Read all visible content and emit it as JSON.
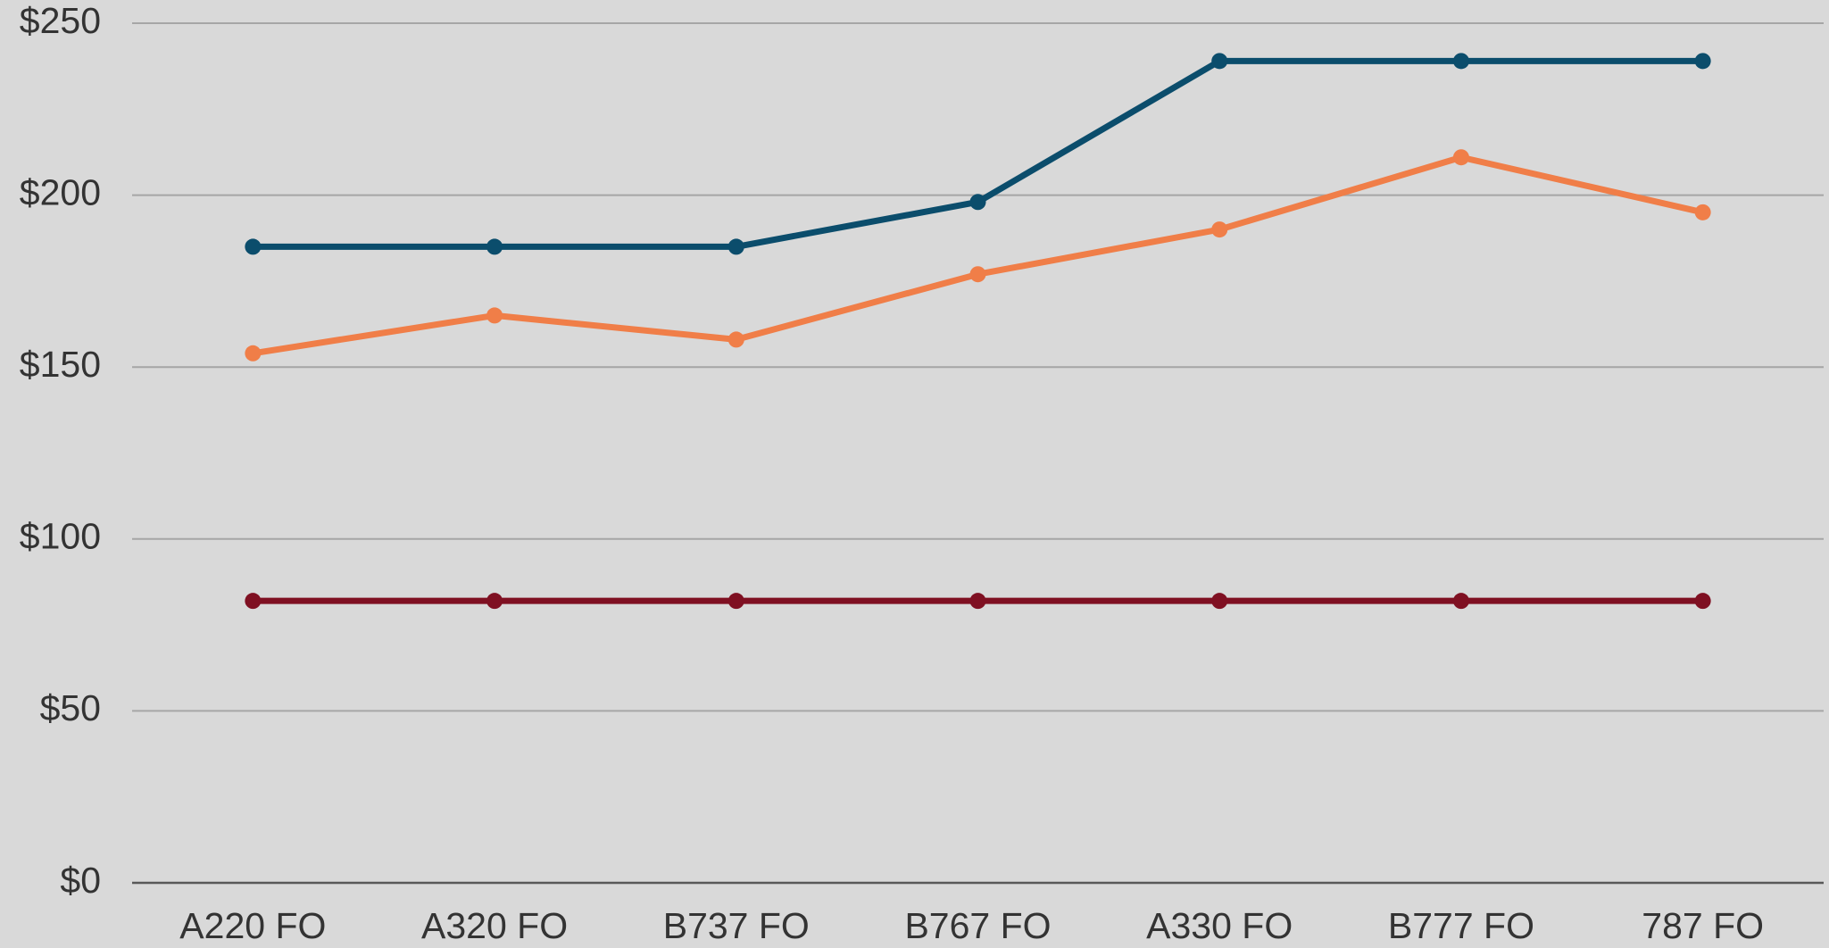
{
  "chart_data": {
    "type": "line",
    "categories": [
      "A220 FO",
      "A320 FO",
      "B737 FO",
      "B767 FO",
      "A330 FO",
      "B777 FO",
      "787 FO"
    ],
    "series": [
      {
        "color": "#0b4d6c",
        "values": [
          185,
          185,
          185,
          198,
          239,
          239,
          239
        ]
      },
      {
        "color": "#f07e48",
        "values": [
          154,
          165,
          158,
          177,
          190,
          211,
          195
        ]
      },
      {
        "color": "#7f1022",
        "values": [
          82,
          82,
          82,
          82,
          82,
          82,
          82
        ]
      }
    ],
    "ylim": [
      0,
      250
    ],
    "yticks": [
      {
        "value": 0,
        "label": "$0"
      },
      {
        "value": 50,
        "label": "$50"
      },
      {
        "value": 100,
        "label": "$100"
      },
      {
        "value": 150,
        "label": "$150"
      },
      {
        "value": 200,
        "label": "$200"
      },
      {
        "value": 250,
        "label": "$250"
      }
    ],
    "grid": true
  }
}
